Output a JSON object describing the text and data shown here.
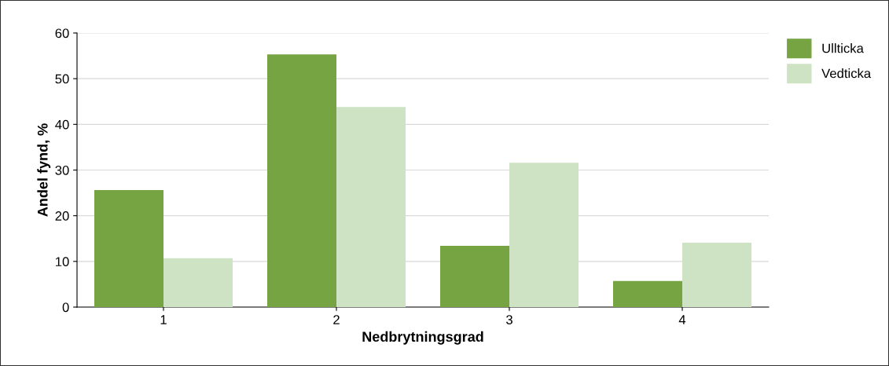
{
  "chart_data": {
    "type": "bar",
    "xlabel": "Nedbrytningsgrad",
    "ylabel": "Andel fynd, %",
    "categories": [
      "1",
      "2",
      "3",
      "4"
    ],
    "series": [
      {
        "name": "Ullticka",
        "color": "#76a443",
        "values": [
          25.6,
          55.3,
          13.4,
          5.7
        ]
      },
      {
        "name": "Vedticka",
        "color": "#cde3c4",
        "values": [
          10.7,
          43.8,
          31.6,
          14.1
        ]
      }
    ],
    "ylim": [
      0,
      60
    ],
    "yticks": [
      0,
      10,
      20,
      30,
      40,
      50,
      60
    ],
    "grid": "y",
    "legend": "top right"
  }
}
